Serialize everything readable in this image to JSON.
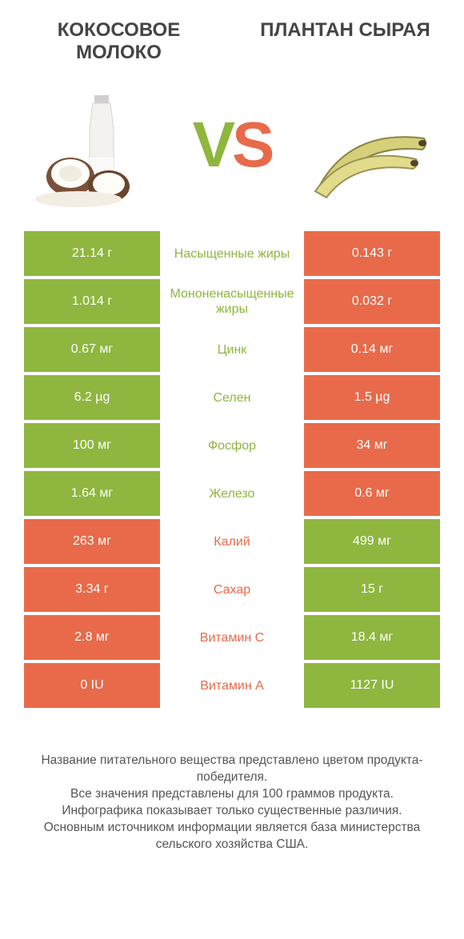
{
  "header": {
    "left_title": "КОКОСОВОЕ МОЛОКО",
    "right_title": "ПЛАНТАН СЫРАЯ",
    "vs_v": "V",
    "vs_s": "S"
  },
  "colors": {
    "green": "#8fb63f",
    "orange": "#e86a4a",
    "text": "#444444",
    "bg": "#ffffff"
  },
  "table": {
    "type": "comparison-table",
    "rows": [
      {
        "left": "21.14 г",
        "mid": "Насыщенные жиры",
        "right": "0.143 г",
        "winner": "left"
      },
      {
        "left": "1.014 г",
        "mid": "Мононенасыщенные жиры",
        "right": "0.032 г",
        "winner": "left"
      },
      {
        "left": "0.67 мг",
        "mid": "Цинк",
        "right": "0.14 мг",
        "winner": "left"
      },
      {
        "left": "6.2 µg",
        "mid": "Селен",
        "right": "1.5 µg",
        "winner": "left"
      },
      {
        "left": "100 мг",
        "mid": "Фосфор",
        "right": "34 мг",
        "winner": "left"
      },
      {
        "left": "1.64 мг",
        "mid": "Железо",
        "right": "0.6 мг",
        "winner": "left"
      },
      {
        "left": "263 мг",
        "mid": "Калий",
        "right": "499 мг",
        "winner": "right"
      },
      {
        "left": "3.34 г",
        "mid": "Сахар",
        "right": "15 г",
        "winner": "right"
      },
      {
        "left": "2.8 мг",
        "mid": "Витамин C",
        "right": "18.4 мг",
        "winner": "right"
      },
      {
        "left": "0 IU",
        "mid": "Витамин A",
        "right": "1127 IU",
        "winner": "right"
      }
    ]
  },
  "footer": {
    "line1": "Название питательного вещества представлено цветом продукта-победителя.",
    "line2": "Все значения представлены для 100 граммов продукта.",
    "line3": "Инфографика показывает только существенные различия.",
    "line4": "Основным источником информации является база министерства сельского хозяйства США."
  }
}
